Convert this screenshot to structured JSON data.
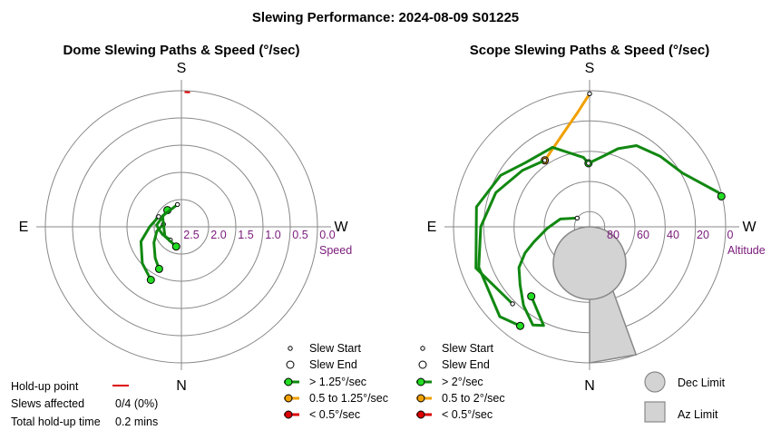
{
  "title": "Slewing Performance: 2024-08-09 S01225",
  "colors": {
    "fast": "#118811",
    "medium": "#f0a000",
    "slow": "#dd0000",
    "ring_label": "#7a1a7a",
    "grid": "#888888",
    "limit_fill": "#d3d3d3"
  },
  "chart_data": [
    {
      "type": "polar",
      "title": "Dome Slewing Paths & Speed (°/sec)",
      "directions": {
        "top": "S",
        "bottom": "N",
        "left": "E",
        "right": "W"
      },
      "radial_axis": {
        "label": "Speed",
        "ticks": [
          "2.5",
          "2.0",
          "1.5",
          "1.0",
          "0.5",
          "0.0"
        ],
        "range": [
          3.0,
          0.0
        ],
        "tick_values": [
          2.5,
          2.0,
          1.5,
          1.0,
          0.5,
          0.0
        ]
      },
      "slews": [
        {
          "speed_class": "fast",
          "points": [
            [
              -82,
              2.6
            ],
            [
              -100,
              2.45
            ],
            [
              -120,
              2.3
            ],
            [
              -140,
              2.1
            ],
            [
              -152,
              1.95
            ]
          ]
        },
        {
          "speed_class": "fast",
          "points": [
            [
              -66,
              2.45
            ],
            [
              -90,
              2.3
            ],
            [
              -110,
              2.05
            ],
            [
              -133,
              1.82
            ],
            [
              -150,
              1.65
            ]
          ]
        },
        {
          "speed_class": "fast",
          "points": [
            [
              -140,
              2.62
            ],
            [
              -112,
              2.55
            ],
            [
              -96,
              2.5
            ],
            [
              -86,
              2.45
            ],
            [
              -40,
              2.52
            ]
          ]
        },
        {
          "speed_class": "fast",
          "points": [
            [
              -10,
              2.5
            ],
            [
              -60,
              2.52
            ],
            [
              -120,
              2.58
            ],
            [
              -165,
              2.55
            ]
          ]
        }
      ],
      "hold_up_points": [
        {
          "angle": 2.5,
          "speed": 0.03
        }
      ],
      "legend": [
        {
          "symbol": "slew-start",
          "label": "Slew Start"
        },
        {
          "symbol": "slew-end",
          "label": "Slew End"
        },
        {
          "symbol": "fast",
          "label": "> 1.25°/sec"
        },
        {
          "symbol": "medium",
          "label": "0.5 to 1.25°/sec"
        },
        {
          "symbol": "slow",
          "label": "< 0.5°/sec"
        }
      ],
      "stats": {
        "hold_up_label": "Hold-up point",
        "slews_affected_label": "Slews affected",
        "slews_affected_value": "0/4 (0%)",
        "total_hold_up_label": "Total hold-up time",
        "total_hold_up_value": "0.2 mins"
      }
    },
    {
      "type": "polar",
      "title": "Scope Slewing Paths & Speed (°/sec)",
      "directions": {
        "top": "S",
        "bottom": "N",
        "left": "E",
        "right": "W"
      },
      "radial_axis": {
        "label": "Altitude",
        "ticks": [
          "80",
          "60",
          "40",
          "20",
          "0"
        ],
        "range": [
          90,
          0
        ],
        "tick_values": [
          80,
          60,
          40,
          20,
          0
        ]
      },
      "slews": [
        {
          "speed_class": "medium",
          "points": [
            [
              0,
              2
            ],
            [
              -6,
              14
            ],
            [
              -16,
              26
            ],
            [
              -34,
              37
            ]
          ]
        },
        {
          "speed_class": "fast",
          "points": [
            [
              -34,
              37
            ],
            [
              -50,
              32
            ],
            [
              -70,
              24
            ],
            [
              -90,
              18
            ],
            [
              -110,
              12
            ],
            [
              -135,
              6
            ],
            [
              -145,
              10
            ]
          ]
        },
        {
          "speed_class": "fast",
          "points": [
            [
              -55,
              80
            ],
            [
              -75,
              70
            ],
            [
              -92,
              62
            ],
            [
              -105,
              52
            ],
            [
              -112,
              44
            ],
            [
              -120,
              36
            ],
            [
              -130,
              30
            ],
            [
              -140,
              22
            ],
            [
              -150,
              15
            ],
            [
              -155,
              18
            ],
            [
              -140,
              30
            ]
          ]
        },
        {
          "speed_class": "fast",
          "points": [
            [
              -135,
              18
            ],
            [
              -110,
              10
            ],
            [
              -80,
              14
            ],
            [
              -60,
              22
            ],
            [
              -45,
              30
            ],
            [
              -25,
              32
            ],
            [
              -5,
              44
            ],
            [
              -1,
              48
            ]
          ]
        },
        {
          "speed_class": "fast",
          "points": [
            [
              -1,
              48
            ],
            [
              10,
              43
            ],
            [
              20,
              35
            ],
            [
              30,
              28
            ],
            [
              45,
              24
            ],
            [
              60,
              19
            ],
            [
              75,
              2
            ],
            [
              76,
              1
            ],
            [
              77,
              0.5
            ]
          ]
        }
      ],
      "dec_limit": {
        "azimuth": 180,
        "altitude": 66,
        "radius_deg": 24
      },
      "az_limit": {
        "azimuth_from": 160,
        "azimuth_to": 180,
        "altitude_min": 0,
        "altitude_max": 55
      },
      "legend": [
        {
          "symbol": "slew-start",
          "label": "Slew Start"
        },
        {
          "symbol": "slew-end",
          "label": "Slew End"
        },
        {
          "symbol": "fast",
          "label": "> 2°/sec"
        },
        {
          "symbol": "medium",
          "label": "0.5 to 2°/sec"
        },
        {
          "symbol": "slow",
          "label": "< 0.5°/sec"
        }
      ],
      "limit_legend": [
        {
          "symbol": "dec-limit",
          "label": "Dec Limit"
        },
        {
          "symbol": "az-limit",
          "label": "Az Limit"
        }
      ]
    }
  ]
}
